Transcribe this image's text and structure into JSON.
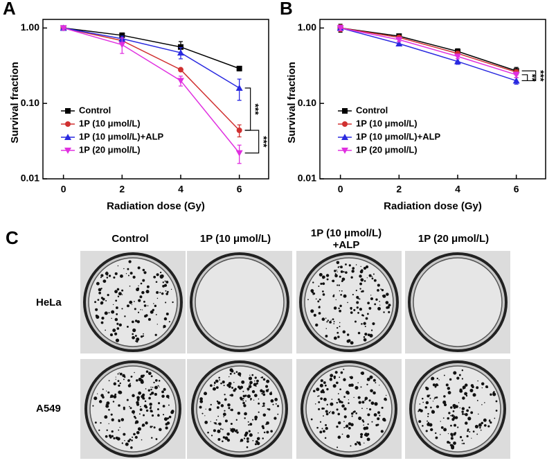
{
  "chart_data": [
    {
      "type": "line",
      "label": "A",
      "ylabel": "Survival fraction",
      "xlabel": "Radiation dose (Gy)",
      "x": [
        0,
        2,
        4,
        6
      ],
      "xlim": [
        -0.7,
        7
      ],
      "xticks": [
        0,
        2,
        4,
        6
      ],
      "ylim": [
        0.01,
        1.3
      ],
      "log_y": true,
      "yticks": [
        {
          "value": 1,
          "label": "1.00"
        },
        {
          "value": 0.1,
          "label": "0.10"
        },
        {
          "value": 0.01,
          "label": "0.01"
        }
      ],
      "series": [
        {
          "name": "Control",
          "color": "#000000",
          "marker": "square",
          "values": [
            1.0,
            0.8,
            0.56,
            0.29
          ],
          "errors": [
            0.06,
            0.06,
            0.1,
            0.02
          ]
        },
        {
          "name": "1P (10 μmol/L)",
          "color": "#d03030",
          "marker": "circle",
          "values": [
            1.0,
            0.68,
            0.28,
            0.044
          ],
          "errors": [
            0.06,
            0.05,
            0.01,
            0.008
          ]
        },
        {
          "name": "1P (10 μmol/L)+ALP",
          "color": "#2a2ae0",
          "marker": "triangle-up",
          "values": [
            1.0,
            0.72,
            0.47,
            0.16
          ],
          "errors": [
            0.06,
            0.06,
            0.08,
            0.05
          ]
        },
        {
          "name": "1P (20 μmol/L)",
          "color": "#e030e0",
          "marker": "triangle-down",
          "values": [
            1.0,
            0.6,
            0.2,
            0.022
          ],
          "errors": [
            0.06,
            0.14,
            0.03,
            0.006
          ]
        }
      ],
      "annotations": [
        "***",
        "***"
      ]
    },
    {
      "type": "line",
      "label": "B",
      "ylabel": "Survival fraction",
      "xlabel": "Radiation dose (Gy)",
      "x": [
        0,
        2,
        4,
        6
      ],
      "xlim": [
        -0.7,
        7
      ],
      "xticks": [
        0,
        2,
        4,
        6
      ],
      "ylim": [
        0.01,
        1.3
      ],
      "log_y": true,
      "yticks": [
        {
          "value": 1,
          "label": "1.00"
        },
        {
          "value": 0.1,
          "label": "0.10"
        },
        {
          "value": 0.01,
          "label": "0.01"
        }
      ],
      "series": [
        {
          "name": "Control",
          "color": "#000000",
          "marker": "square",
          "values": [
            1.0,
            0.78,
            0.49,
            0.27
          ],
          "errors": [
            0.12,
            0.04,
            0.04,
            0.03
          ]
        },
        {
          "name": "1P (10 μmol/L)",
          "color": "#d03030",
          "marker": "circle",
          "values": [
            1.0,
            0.75,
            0.46,
            0.26
          ],
          "errors": [
            0.1,
            0.04,
            0.03,
            0.02
          ]
        },
        {
          "name": "1P (10 μmol/L)+ALP",
          "color": "#2a2ae0",
          "marker": "triangle-up",
          "values": [
            1.0,
            0.62,
            0.36,
            0.2
          ],
          "errors": [
            0.08,
            0.04,
            0.03,
            0.02
          ]
        },
        {
          "name": "1P (20 μmol/L)",
          "color": "#e030e0",
          "marker": "triangle-down",
          "values": [
            1.0,
            0.7,
            0.42,
            0.24
          ],
          "errors": [
            0.08,
            0.04,
            0.03,
            0.02
          ]
        }
      ],
      "annotations": [
        "**",
        "***"
      ]
    }
  ],
  "panel_c": {
    "label": "C",
    "columns": [
      "Control",
      "1P (10 μmol/L)",
      "1P (10 μmol/L) +ALP",
      "1P (20 μmol/L)"
    ],
    "rows": [
      "HeLa",
      "A549"
    ]
  }
}
